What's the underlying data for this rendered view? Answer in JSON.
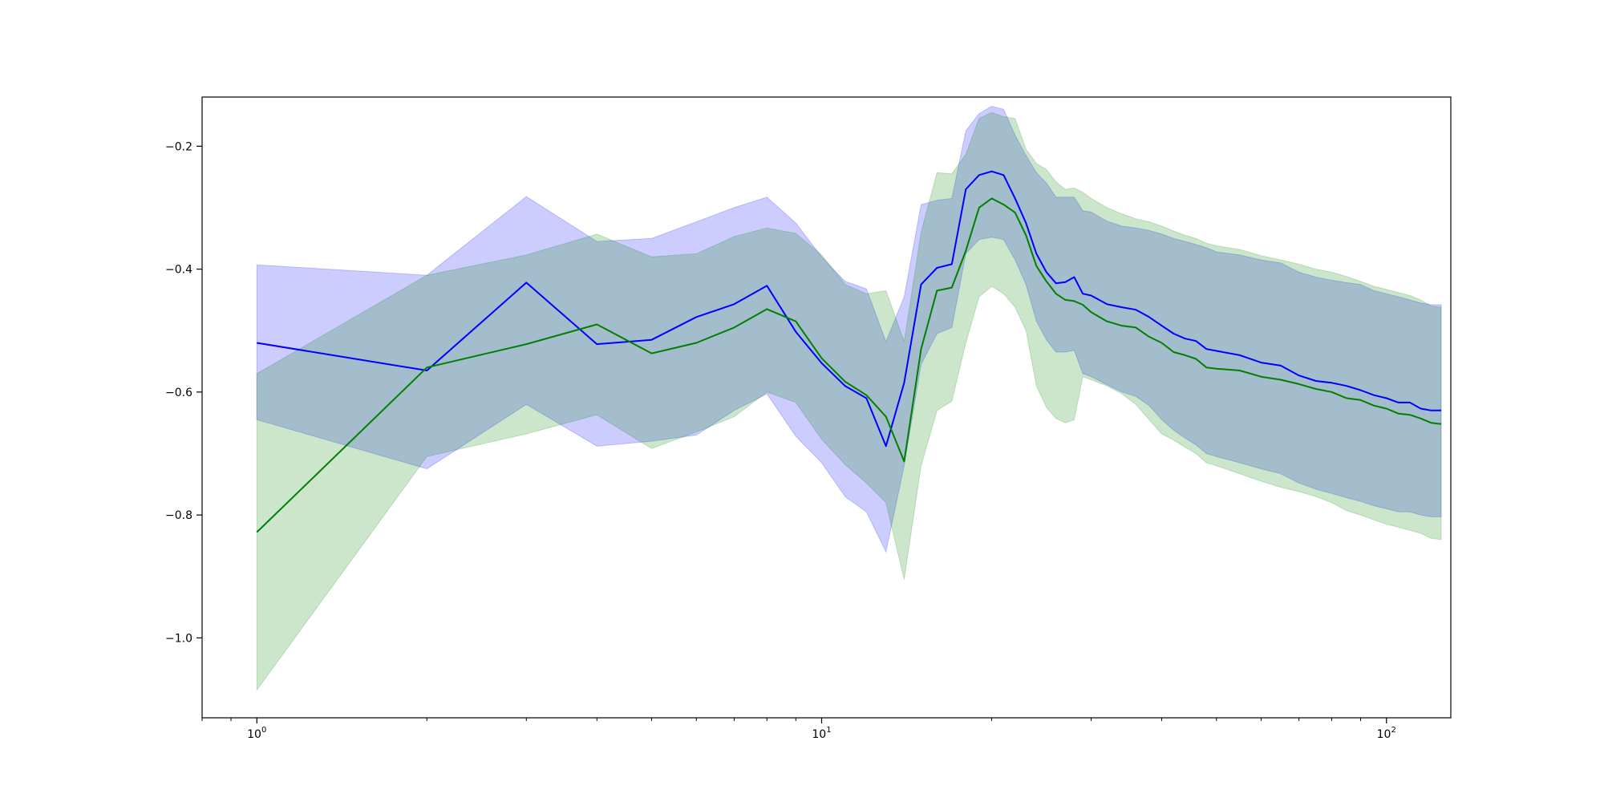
{
  "chart_data": {
    "type": "line",
    "title": "",
    "xlabel": "",
    "ylabel": "",
    "xscale": "log",
    "xlim": [
      0.8,
      130
    ],
    "ylim": [
      -1.13,
      -0.12
    ],
    "grid": false,
    "x_ticks": [
      {
        "value": 1,
        "base": "10",
        "exp": "0"
      },
      {
        "value": 10,
        "base": "10",
        "exp": "1"
      },
      {
        "value": 100,
        "base": "10",
        "exp": "2"
      }
    ],
    "y_ticks": [
      {
        "value": -0.2,
        "label": "−0.2"
      },
      {
        "value": -0.4,
        "label": "−0.4"
      },
      {
        "value": -0.6,
        "label": "−0.6"
      },
      {
        "value": -0.8,
        "label": "−0.8"
      },
      {
        "value": -1.0,
        "label": "−1.0"
      }
    ],
    "series": [
      {
        "color": "#0000ff",
        "band_color": "#0000ff",
        "band_opacity": 0.2,
        "x": [
          1,
          2,
          3,
          4,
          5,
          6,
          7,
          8,
          9,
          10,
          11,
          12,
          13,
          14,
          15,
          16,
          17,
          18,
          19,
          20,
          21,
          22,
          23,
          24,
          25,
          26,
          27,
          28,
          29,
          30,
          32,
          34,
          36,
          38,
          40,
          42,
          44,
          46,
          48,
          50,
          55,
          60,
          65,
          70,
          75,
          80,
          85,
          90,
          95,
          100,
          105,
          110,
          115,
          120,
          125
        ],
        "y": [
          -0.52,
          -0.565,
          -0.422,
          -0.522,
          -0.515,
          -0.478,
          -0.457,
          -0.427,
          -0.502,
          -0.553,
          -0.59,
          -0.61,
          -0.688,
          -0.585,
          -0.425,
          -0.398,
          -0.392,
          -0.27,
          -0.247,
          -0.241,
          -0.247,
          -0.285,
          -0.325,
          -0.375,
          -0.405,
          -0.423,
          -0.421,
          -0.413,
          -0.44,
          -0.443,
          -0.457,
          -0.462,
          -0.466,
          -0.478,
          -0.492,
          -0.505,
          -0.513,
          -0.517,
          -0.53,
          -0.533,
          -0.54,
          -0.552,
          -0.557,
          -0.573,
          -0.582,
          -0.585,
          -0.59,
          -0.597,
          -0.605,
          -0.61,
          -0.617,
          -0.617,
          -0.627,
          -0.63,
          -0.63
        ],
        "lower": [
          -0.645,
          -0.725,
          -0.62,
          -0.688,
          -0.68,
          -0.67,
          -0.63,
          -0.603,
          -0.672,
          -0.715,
          -0.77,
          -0.795,
          -0.86,
          -0.72,
          -0.555,
          -0.505,
          -0.495,
          -0.375,
          -0.352,
          -0.348,
          -0.352,
          -0.385,
          -0.425,
          -0.485,
          -0.515,
          -0.535,
          -0.535,
          -0.532,
          -0.57,
          -0.575,
          -0.588,
          -0.6,
          -0.607,
          -0.622,
          -0.645,
          -0.662,
          -0.675,
          -0.686,
          -0.7,
          -0.705,
          -0.715,
          -0.725,
          -0.733,
          -0.748,
          -0.758,
          -0.765,
          -0.772,
          -0.778,
          -0.785,
          -0.79,
          -0.795,
          -0.795,
          -0.8,
          -0.803,
          -0.803
        ],
        "upper": [
          -0.393,
          -0.41,
          -0.282,
          -0.355,
          -0.35,
          -0.323,
          -0.3,
          -0.283,
          -0.325,
          -0.38,
          -0.42,
          -0.432,
          -0.518,
          -0.445,
          -0.295,
          -0.288,
          -0.285,
          -0.175,
          -0.147,
          -0.135,
          -0.14,
          -0.182,
          -0.215,
          -0.243,
          -0.26,
          -0.283,
          -0.283,
          -0.283,
          -0.305,
          -0.307,
          -0.322,
          -0.33,
          -0.333,
          -0.337,
          -0.343,
          -0.35,
          -0.355,
          -0.36,
          -0.365,
          -0.372,
          -0.377,
          -0.385,
          -0.39,
          -0.405,
          -0.413,
          -0.418,
          -0.422,
          -0.425,
          -0.435,
          -0.44,
          -0.445,
          -0.45,
          -0.455,
          -0.458,
          -0.458
        ]
      },
      {
        "color": "#008000",
        "band_color": "#008000",
        "band_opacity": 0.2,
        "x": [
          1,
          2,
          3,
          4,
          5,
          6,
          7,
          8,
          9,
          10,
          11,
          12,
          13,
          14,
          15,
          16,
          17,
          18,
          19,
          20,
          21,
          22,
          23,
          24,
          25,
          26,
          27,
          28,
          29,
          30,
          32,
          34,
          36,
          38,
          40,
          42,
          44,
          46,
          48,
          50,
          55,
          60,
          65,
          70,
          75,
          80,
          85,
          90,
          95,
          100,
          105,
          110,
          115,
          120,
          125
        ],
        "y": [
          -0.828,
          -0.56,
          -0.522,
          -0.49,
          -0.537,
          -0.52,
          -0.495,
          -0.465,
          -0.485,
          -0.545,
          -0.583,
          -0.605,
          -0.64,
          -0.713,
          -0.53,
          -0.435,
          -0.43,
          -0.37,
          -0.3,
          -0.285,
          -0.295,
          -0.308,
          -0.345,
          -0.395,
          -0.42,
          -0.44,
          -0.45,
          -0.452,
          -0.458,
          -0.47,
          -0.485,
          -0.492,
          -0.495,
          -0.51,
          -0.52,
          -0.535,
          -0.54,
          -0.546,
          -0.56,
          -0.562,
          -0.565,
          -0.575,
          -0.58,
          -0.587,
          -0.595,
          -0.6,
          -0.61,
          -0.613,
          -0.622,
          -0.627,
          -0.635,
          -0.637,
          -0.643,
          -0.65,
          -0.652
        ],
        "lower": [
          -1.085,
          -0.705,
          -0.668,
          -0.637,
          -0.692,
          -0.665,
          -0.64,
          -0.6,
          -0.617,
          -0.677,
          -0.718,
          -0.748,
          -0.78,
          -0.905,
          -0.72,
          -0.63,
          -0.615,
          -0.52,
          -0.445,
          -0.428,
          -0.44,
          -0.462,
          -0.5,
          -0.59,
          -0.625,
          -0.643,
          -0.65,
          -0.645,
          -0.575,
          -0.58,
          -0.59,
          -0.603,
          -0.62,
          -0.645,
          -0.668,
          -0.678,
          -0.69,
          -0.7,
          -0.715,
          -0.72,
          -0.733,
          -0.745,
          -0.755,
          -0.762,
          -0.77,
          -0.78,
          -0.793,
          -0.8,
          -0.808,
          -0.815,
          -0.82,
          -0.825,
          -0.83,
          -0.838,
          -0.84
        ],
        "upper": [
          -0.57,
          -0.41,
          -0.377,
          -0.343,
          -0.38,
          -0.375,
          -0.347,
          -0.333,
          -0.342,
          -0.377,
          -0.425,
          -0.44,
          -0.435,
          -0.518,
          -0.34,
          -0.243,
          -0.245,
          -0.213,
          -0.155,
          -0.145,
          -0.152,
          -0.155,
          -0.205,
          -0.228,
          -0.238,
          -0.258,
          -0.27,
          -0.268,
          -0.275,
          -0.285,
          -0.3,
          -0.31,
          -0.318,
          -0.323,
          -0.33,
          -0.338,
          -0.345,
          -0.35,
          -0.358,
          -0.362,
          -0.368,
          -0.378,
          -0.385,
          -0.392,
          -0.4,
          -0.405,
          -0.412,
          -0.42,
          -0.428,
          -0.433,
          -0.438,
          -0.443,
          -0.45,
          -0.46,
          -0.462
        ]
      }
    ]
  }
}
